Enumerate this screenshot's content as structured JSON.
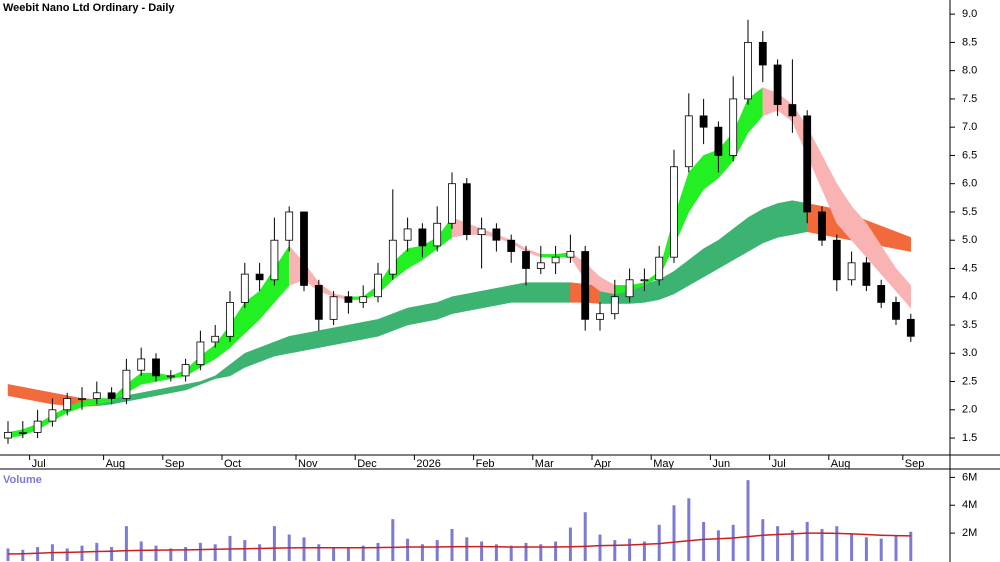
{
  "chart_data": [
    {
      "type": "candlestick",
      "title": "Weebit Nano Ltd Ordinary - Daily",
      "categories": [
        null,
        null,
        "Jul",
        null,
        null,
        null,
        null,
        "Aug",
        null,
        null,
        null,
        "Sep",
        null,
        null,
        null,
        "Oct",
        null,
        null,
        null,
        null,
        "Nov",
        null,
        null,
        null,
        "Dec",
        null,
        null,
        null,
        "2026",
        null,
        null,
        null,
        "Feb",
        null,
        null,
        null,
        "Mar",
        null,
        null,
        null,
        "Apr",
        null,
        null,
        null,
        "May",
        null,
        null,
        null,
        "Jun",
        null,
        null,
        null,
        "Jul",
        null,
        null,
        null,
        "Aug",
        null,
        null,
        null,
        null,
        "Sep"
      ],
      "open": [
        1.5,
        1.6,
        1.6,
        1.8,
        2.0,
        2.2,
        2.2,
        2.3,
        2.2,
        2.7,
        2.9,
        2.6,
        2.6,
        2.8,
        3.2,
        3.3,
        3.9,
        4.4,
        4.3,
        5.0,
        5.5,
        4.2,
        3.6,
        4.0,
        3.9,
        4.0,
        4.4,
        5.0,
        5.2,
        4.9,
        5.3,
        6.0,
        5.1,
        5.2,
        5.0,
        4.8,
        4.5,
        4.6,
        4.7,
        4.8,
        3.6,
        3.7,
        4.0,
        4.3,
        4.3,
        4.7,
        6.3,
        7.2,
        7.0,
        6.5,
        7.5,
        8.5,
        8.1,
        7.4,
        7.2,
        5.5,
        5.0,
        4.3,
        4.6,
        4.2,
        3.9,
        3.6
      ],
      "high": [
        1.8,
        1.8,
        2.0,
        2.2,
        2.3,
        2.4,
        2.5,
        2.4,
        2.9,
        3.1,
        3.0,
        2.7,
        2.9,
        3.4,
        3.5,
        4.1,
        4.6,
        4.6,
        5.4,
        5.6,
        5.5,
        4.3,
        4.1,
        4.1,
        4.2,
        4.6,
        5.9,
        5.4,
        5.3,
        5.6,
        6.2,
        6.1,
        5.4,
        5.3,
        5.1,
        4.9,
        4.9,
        4.9,
        5.1,
        4.9,
        3.9,
        4.3,
        4.5,
        4.5,
        4.9,
        6.6,
        7.6,
        7.5,
        7.1,
        7.9,
        8.9,
        8.7,
        8.2,
        8.2,
        7.3,
        5.6,
        5.1,
        4.8,
        4.7,
        4.3,
        4.0,
        3.7
      ],
      "low": [
        1.4,
        1.5,
        1.5,
        1.7,
        1.9,
        2.0,
        2.1,
        2.1,
        2.1,
        2.6,
        2.5,
        2.5,
        2.5,
        2.7,
        3.1,
        3.2,
        3.8,
        4.1,
        4.2,
        4.8,
        4.1,
        3.4,
        3.5,
        3.7,
        3.8,
        3.9,
        4.3,
        4.8,
        4.7,
        4.8,
        5.2,
        5.0,
        4.5,
        4.8,
        4.6,
        4.2,
        4.4,
        4.4,
        4.6,
        3.4,
        3.4,
        3.6,
        3.9,
        4.1,
        4.2,
        4.6,
        6.2,
        6.7,
        6.2,
        6.4,
        7.4,
        7.8,
        7.2,
        6.9,
        5.3,
        4.9,
        4.1,
        4.2,
        4.1,
        3.8,
        3.5,
        3.2
      ],
      "close": [
        1.6,
        1.6,
        1.8,
        2.0,
        2.2,
        2.2,
        2.3,
        2.2,
        2.7,
        2.9,
        2.6,
        2.6,
        2.8,
        3.2,
        3.3,
        3.9,
        4.4,
        4.3,
        5.0,
        5.5,
        4.2,
        3.6,
        4.0,
        3.9,
        4.0,
        4.4,
        5.0,
        5.2,
        4.9,
        5.3,
        6.0,
        5.1,
        5.2,
        5.0,
        4.8,
        4.5,
        4.6,
        4.7,
        4.8,
        3.6,
        3.7,
        4.0,
        4.3,
        4.3,
        4.7,
        6.3,
        7.2,
        7.0,
        6.5,
        7.5,
        8.5,
        8.1,
        7.4,
        7.2,
        5.5,
        5.0,
        4.3,
        4.6,
        4.2,
        3.9,
        3.6,
        3.3
      ],
      "up_color": "#ffffff",
      "down_color": "#000000",
      "bands": [
        {
          "upper": [
            2.45,
            2.4,
            2.35,
            2.3,
            2.25,
            2.2,
            2.18,
            2.2,
            2.25,
            2.3,
            2.35,
            2.4,
            2.45,
            2.5,
            2.6,
            2.8,
            3.0,
            3.1,
            3.2,
            3.3,
            3.35,
            3.4,
            3.45,
            3.5,
            3.55,
            3.6,
            3.7,
            3.8,
            3.85,
            3.9,
            4.0,
            4.05,
            4.1,
            4.15,
            4.2,
            4.25,
            4.25,
            4.25,
            4.25,
            4.22,
            4.2,
            4.2,
            4.2,
            4.22,
            4.3,
            4.45,
            4.65,
            4.85,
            5.0,
            5.2,
            5.4,
            5.55,
            5.65,
            5.7,
            5.65,
            5.6,
            5.55,
            5.45,
            5.35,
            5.25,
            5.15,
            5.05
          ],
          "lower": [
            2.25,
            2.2,
            2.15,
            2.1,
            2.08,
            2.06,
            2.07,
            2.1,
            2.15,
            2.2,
            2.25,
            2.3,
            2.35,
            2.45,
            2.55,
            2.6,
            2.75,
            2.85,
            2.95,
            3.0,
            3.05,
            3.1,
            3.15,
            3.2,
            3.25,
            3.3,
            3.4,
            3.5,
            3.55,
            3.6,
            3.7,
            3.75,
            3.8,
            3.85,
            3.9,
            3.9,
            3.9,
            3.9,
            3.9,
            3.9,
            3.88,
            3.88,
            3.88,
            3.9,
            3.95,
            4.05,
            4.2,
            4.35,
            4.5,
            4.65,
            4.8,
            4.95,
            5.05,
            5.1,
            5.15,
            5.1,
            5.05,
            5.0,
            4.95,
            4.9,
            4.85,
            4.8
          ],
          "up_color": "#3cb371",
          "down_color": "#f26a3c"
        },
        {
          "upper": [
            1.6,
            1.65,
            1.75,
            1.9,
            2.05,
            2.15,
            2.2,
            2.2,
            2.45,
            2.65,
            2.65,
            2.6,
            2.7,
            2.95,
            3.15,
            3.5,
            3.9,
            4.1,
            4.5,
            4.9,
            4.6,
            4.25,
            4.05,
            4.0,
            4.0,
            4.2,
            4.6,
            4.85,
            4.9,
            5.05,
            5.4,
            5.3,
            5.2,
            5.1,
            5.0,
            4.85,
            4.75,
            4.75,
            4.78,
            4.6,
            4.35,
            4.2,
            4.2,
            4.25,
            4.45,
            5.4,
            6.2,
            6.5,
            6.6,
            6.9,
            7.5,
            7.7,
            7.6,
            7.4,
            7.0,
            6.5,
            6.0,
            5.6,
            5.3,
            4.9,
            4.5,
            4.2
          ],
          "lower": [
            1.5,
            1.55,
            1.65,
            1.8,
            1.95,
            2.05,
            2.1,
            2.15,
            2.3,
            2.45,
            2.5,
            2.55,
            2.6,
            2.75,
            2.9,
            3.1,
            3.35,
            3.6,
            3.9,
            4.2,
            4.3,
            4.1,
            4.0,
            3.95,
            3.95,
            4.05,
            4.3,
            4.5,
            4.65,
            4.85,
            5.05,
            5.1,
            5.1,
            5.05,
            4.95,
            4.8,
            4.7,
            4.7,
            4.7,
            4.3,
            4.1,
            4.05,
            4.1,
            4.2,
            4.35,
            4.9,
            5.5,
            5.9,
            6.1,
            6.4,
            6.9,
            7.2,
            7.3,
            7.1,
            6.5,
            5.9,
            5.3,
            5.0,
            4.7,
            4.4,
            4.1,
            3.8
          ],
          "up_color": "#22f022",
          "down_color": "#f9b3b3"
        }
      ],
      "ylim": [
        1.2,
        9.25
      ],
      "yticks": [
        1.5,
        {
          "value": 2,
          "label": "2.0"
        },
        2.5,
        {
          "value": 3,
          "label": "3.0"
        },
        3.5,
        {
          "value": 4,
          "label": "4.0"
        },
        4.5,
        {
          "value": 5,
          "label": "5.0"
        },
        5.5,
        {
          "value": 6,
          "label": "6.0"
        },
        6.5,
        {
          "value": 7,
          "label": "7.0"
        },
        7.5,
        {
          "value": 8,
          "label": "8.0"
        },
        8.5,
        {
          "value": 9,
          "label": "9.0"
        }
      ]
    },
    {
      "type": "bar",
      "title": "Volume",
      "color": "#7b7bd6",
      "average_color": "#cc2020",
      "values": [
        900000,
        800000,
        1000000,
        1200000,
        900000,
        1100000,
        1300000,
        1000000,
        2500000,
        1400000,
        1100000,
        900000,
        1000000,
        1300000,
        1200000,
        1800000,
        1500000,
        1200000,
        2500000,
        1900000,
        1700000,
        1200000,
        1000000,
        900000,
        1100000,
        1300000,
        3000000,
        1600000,
        1200000,
        1500000,
        2300000,
        1700000,
        1400000,
        1200000,
        1100000,
        1300000,
        1200000,
        1400000,
        2400000,
        3500000,
        1900000,
        1500000,
        1600000,
        1400000,
        2600000,
        4000000,
        4500000,
        2800000,
        2200000,
        2600000,
        5800000,
        3000000,
        2500000,
        2200000,
        2800000,
        2300000,
        2500000,
        1900000,
        1700000,
        1600000,
        1800000,
        2100000
      ],
      "average": [
        500000,
        520000,
        560000,
        600000,
        620000,
        650000,
        680000,
        700000,
        740000,
        760000,
        780000,
        790000,
        800000,
        820000,
        840000,
        860000,
        880000,
        900000,
        920000,
        940000,
        950000,
        950000,
        950000,
        950000,
        950000,
        960000,
        980000,
        1000000,
        1000000,
        1000000,
        1020000,
        1030000,
        1030000,
        1020000,
        1000000,
        1000000,
        1000000,
        1000000,
        1020000,
        1050000,
        1100000,
        1120000,
        1150000,
        1200000,
        1250000,
        1350000,
        1450000,
        1550000,
        1600000,
        1650000,
        1750000,
        1850000,
        1900000,
        1950000,
        2000000,
        2000000,
        1980000,
        1950000,
        1900000,
        1850000,
        1820000,
        1800000
      ],
      "ylim": [
        0,
        6600000
      ],
      "yticks": [
        {
          "value": 2000000,
          "label": "2M"
        },
        {
          "value": 4000000,
          "label": "4M"
        },
        {
          "value": 6000000,
          "label": "6M"
        }
      ]
    }
  ]
}
